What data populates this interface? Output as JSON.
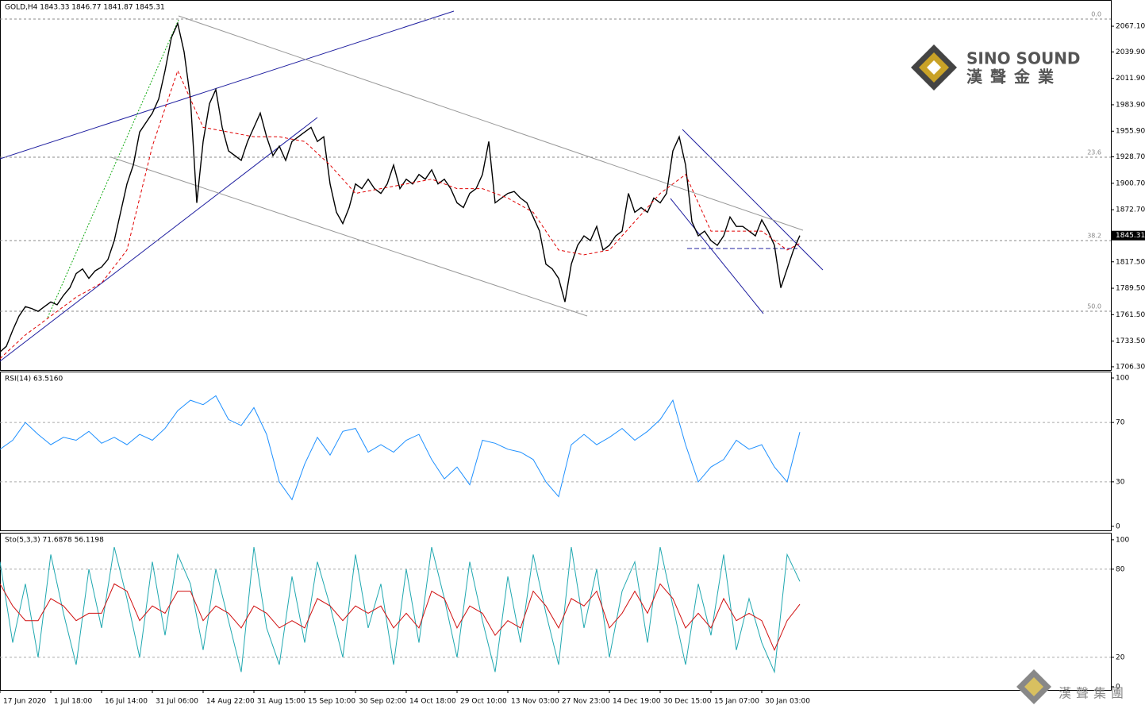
{
  "chart_data": [
    {
      "type": "line",
      "title": "GOLD,H4  1843.33 1846.77 1841.87 1845.31",
      "xlim": [
        0,
        175
      ],
      "ylim": [
        1702.9,
        2094.9
      ],
      "yticks": [
        {
          "value": 2067.1,
          "label": "2067.10"
        },
        {
          "value": 2039.9,
          "label": "2039.90"
        },
        {
          "value": 2011.9,
          "label": "2011.90"
        },
        {
          "value": 1983.9,
          "label": "1983.90"
        },
        {
          "value": 1955.9,
          "label": "1955.90"
        },
        {
          "value": 1928.7,
          "label": "1928.70"
        },
        {
          "value": 1900.7,
          "label": "1900.70"
        },
        {
          "value": 1872.7,
          "label": "1872.70"
        },
        1845.31,
        {
          "value": 1817.5,
          "label": "1817.50"
        },
        {
          "value": 1789.5,
          "label": "1789.50"
        },
        {
          "value": 1761.5,
          "label": "1761.50"
        },
        {
          "value": 1733.5,
          "label": "1733.50"
        },
        {
          "value": 1706.3,
          "label": "1706.30"
        }
      ],
      "grid": false,
      "fib_levels": [
        {
          "value": 2074.7,
          "label": "0.0"
        },
        {
          "value": 1928.3,
          "label": "23.6"
        },
        {
          "value": 1840.0,
          "label": "38.2"
        },
        {
          "value": 1765.2,
          "label": "50.0"
        }
      ],
      "series": [
        {
          "name": "GOLD",
          "color": "#000000",
          "x": [
            0,
            1,
            2,
            3,
            4,
            5,
            6,
            7,
            8,
            9,
            10,
            11,
            12,
            13,
            14,
            15,
            16,
            17,
            18,
            19,
            20,
            21,
            22,
            23,
            24,
            25,
            26,
            27,
            28,
            29,
            30,
            31,
            32,
            33,
            34,
            35,
            36,
            37,
            38,
            39,
            40,
            41,
            42,
            43,
            44,
            45,
            46,
            47,
            48,
            49,
            50,
            51,
            52,
            53,
            54,
            55,
            56,
            57,
            58,
            59,
            60,
            61,
            62,
            63,
            64,
            65,
            66,
            67,
            68,
            69,
            70,
            71,
            72,
            73,
            74,
            75,
            76,
            77,
            78,
            79,
            80,
            81,
            82,
            83,
            84,
            85,
            86,
            87,
            88,
            89,
            90,
            91,
            92,
            93,
            94,
            95,
            96,
            97,
            98,
            99,
            100,
            101,
            102,
            103,
            104,
            105,
            106,
            107,
            108,
            109,
            110,
            111,
            112,
            113,
            114,
            115,
            116,
            117,
            118,
            119,
            120,
            121,
            122,
            123,
            124,
            125,
            126
          ],
          "values": [
            1722,
            1728,
            1745,
            1760,
            1770,
            1768,
            1765,
            1770,
            1775,
            1772,
            1782,
            1790,
            1805,
            1810,
            1800,
            1808,
            1812,
            1820,
            1840,
            1870,
            1900,
            1920,
            1955,
            1965,
            1975,
            1990,
            2020,
            2055,
            2070,
            2040,
            1990,
            1880,
            1945,
            1985,
            2000,
            1960,
            1935,
            1930,
            1925,
            1945,
            1960,
            1975,
            1950,
            1930,
            1940,
            1925,
            1945,
            1950,
            1955,
            1960,
            1945,
            1950,
            1900,
            1870,
            1858,
            1875,
            1900,
            1895,
            1905,
            1895,
            1890,
            1900,
            1920,
            1895,
            1905,
            1900,
            1910,
            1905,
            1915,
            1900,
            1905,
            1895,
            1880,
            1875,
            1890,
            1895,
            1910,
            1945,
            1880,
            1885,
            1890,
            1892,
            1885,
            1880,
            1865,
            1850,
            1815,
            1810,
            1800,
            1775,
            1815,
            1835,
            1845,
            1840,
            1855,
            1830,
            1835,
            1845,
            1850,
            1890,
            1870,
            1875,
            1870,
            1885,
            1880,
            1890,
            1935,
            1950,
            1920,
            1860,
            1845,
            1850,
            1840,
            1835,
            1845,
            1865,
            1855,
            1855,
            1850,
            1845,
            1862,
            1850,
            1835,
            1790,
            1810,
            1830,
            1845.31
          ]
        },
        {
          "name": "MA",
          "color": "#e00000",
          "dashed": true,
          "x": [
            0,
            4,
            8,
            12,
            16,
            20,
            24,
            28,
            32,
            36,
            40,
            44,
            48,
            52,
            56,
            60,
            64,
            68,
            72,
            76,
            80,
            84,
            88,
            92,
            96,
            100,
            104,
            108,
            112,
            116,
            120,
            124,
            126
          ],
          "values": [
            1715,
            1740,
            1760,
            1780,
            1795,
            1830,
            1940,
            2020,
            1960,
            1955,
            1950,
            1950,
            1945,
            1920,
            1890,
            1895,
            1900,
            1905,
            1895,
            1895,
            1885,
            1870,
            1830,
            1825,
            1830,
            1860,
            1890,
            1910,
            1850,
            1850,
            1850,
            1830,
            1837
          ]
        }
      ]
    },
    {
      "type": "line",
      "title": "RSI(14) 63.5160",
      "xlim": [
        0,
        175
      ],
      "ylim": [
        -2.7,
        104.3
      ],
      "yticks": [
        100,
        70,
        30,
        0
      ],
      "grid": true,
      "series": [
        {
          "name": "RSI",
          "color": "#1e90ff",
          "x": [
            0,
            2,
            4,
            6,
            8,
            10,
            12,
            14,
            16,
            18,
            20,
            22,
            24,
            26,
            28,
            30,
            32,
            34,
            36,
            38,
            40,
            42,
            44,
            46,
            48,
            50,
            52,
            54,
            56,
            58,
            60,
            62,
            64,
            66,
            68,
            70,
            72,
            74,
            76,
            78,
            80,
            82,
            84,
            86,
            88,
            90,
            92,
            94,
            96,
            98,
            100,
            102,
            104,
            106,
            108,
            110,
            112,
            114,
            116,
            118,
            120,
            122,
            124,
            126
          ],
          "values": [
            52,
            58,
            70,
            62,
            55,
            60,
            58,
            64,
            56,
            60,
            55,
            62,
            58,
            66,
            78,
            85,
            82,
            88,
            72,
            68,
            80,
            62,
            30,
            18,
            42,
            60,
            48,
            64,
            66,
            50,
            55,
            50,
            58,
            62,
            45,
            32,
            40,
            28,
            58,
            56,
            52,
            50,
            45,
            30,
            20,
            55,
            62,
            55,
            60,
            66,
            58,
            64,
            72,
            85,
            55,
            30,
            40,
            45,
            58,
            52,
            55,
            40,
            30,
            63.516
          ]
        }
      ]
    },
    {
      "type": "line",
      "title": "Sto(5,3,3) 71.6878 56.1198",
      "xlim": [
        0,
        175
      ],
      "ylim": [
        -2.2,
        104.8
      ],
      "yticks": [
        100,
        80,
        20,
        0
      ],
      "grid": true,
      "xticks": [
        {
          "value": 0,
          "label": "17 Jun 2020"
        },
        {
          "value": 8,
          "label": "1 Jul 18:00"
        },
        {
          "value": 16,
          "label": "16 Jul 14:00"
        },
        {
          "value": 24,
          "label": "31 Jul 06:00"
        },
        {
          "value": 32,
          "label": "14 Aug 22:00"
        },
        {
          "value": 40,
          "label": "31 Aug 15:00"
        },
        {
          "value": 48,
          "label": "15 Sep 10:00"
        },
        {
          "value": 56,
          "label": "30 Sep 02:00"
        },
        {
          "value": 64,
          "label": "14 Oct 18:00"
        },
        {
          "value": 72,
          "label": "29 Oct 10:00"
        },
        {
          "value": 80,
          "label": "13 Nov 03:00"
        },
        {
          "value": 88,
          "label": "27 Nov 23:00"
        },
        {
          "value": 96,
          "label": "14 Dec 19:00"
        },
        {
          "value": 104,
          "label": "30 Dec 15:00"
        },
        {
          "value": 112,
          "label": "15 Jan 07:00"
        },
        {
          "value": 120,
          "label": "30 Jan 03:00"
        }
      ],
      "series": [
        {
          "name": "Main",
          "color": "#20a8b0",
          "x": [
            0,
            2,
            4,
            6,
            8,
            10,
            12,
            14,
            16,
            18,
            20,
            22,
            24,
            26,
            28,
            30,
            32,
            34,
            36,
            38,
            40,
            42,
            44,
            46,
            48,
            50,
            52,
            54,
            56,
            58,
            60,
            62,
            64,
            66,
            68,
            70,
            72,
            74,
            76,
            78,
            80,
            82,
            84,
            86,
            88,
            90,
            92,
            94,
            96,
            98,
            100,
            102,
            104,
            106,
            108,
            110,
            112,
            114,
            116,
            118,
            120,
            122,
            124,
            126
          ],
          "values": [
            85,
            30,
            70,
            20,
            90,
            50,
            15,
            80,
            40,
            95,
            60,
            20,
            85,
            35,
            90,
            70,
            25,
            80,
            45,
            10,
            95,
            40,
            15,
            75,
            30,
            85,
            55,
            20,
            90,
            40,
            70,
            15,
            80,
            30,
            95,
            60,
            20,
            85,
            45,
            10,
            75,
            30,
            90,
            50,
            15,
            95,
            40,
            80,
            20,
            65,
            85,
            30,
            95,
            55,
            15,
            70,
            35,
            90,
            25,
            60,
            30,
            10,
            90,
            71.6878
          ]
        },
        {
          "name": "Signal",
          "color": "#d01010",
          "x": [
            0,
            2,
            4,
            6,
            8,
            10,
            12,
            14,
            16,
            18,
            20,
            22,
            24,
            26,
            28,
            30,
            32,
            34,
            36,
            38,
            40,
            42,
            44,
            46,
            48,
            50,
            52,
            54,
            56,
            58,
            60,
            62,
            64,
            66,
            68,
            70,
            72,
            74,
            76,
            78,
            80,
            82,
            84,
            86,
            88,
            90,
            92,
            94,
            96,
            98,
            100,
            102,
            104,
            106,
            108,
            110,
            112,
            114,
            116,
            118,
            120,
            122,
            124,
            126
          ],
          "values": [
            70,
            55,
            45,
            45,
            60,
            55,
            45,
            50,
            50,
            70,
            65,
            45,
            55,
            50,
            65,
            65,
            45,
            55,
            50,
            40,
            55,
            50,
            40,
            45,
            40,
            60,
            55,
            45,
            55,
            50,
            55,
            40,
            50,
            40,
            65,
            60,
            40,
            55,
            50,
            35,
            45,
            40,
            65,
            55,
            40,
            60,
            55,
            65,
            40,
            50,
            65,
            50,
            70,
            60,
            40,
            50,
            40,
            60,
            45,
            50,
            45,
            25,
            45,
            56.1198
          ]
        }
      ]
    }
  ],
  "logo": {
    "brand": "SINO SOUND",
    "chinese": "漢聲金業"
  },
  "watermark": "漢聲集團"
}
